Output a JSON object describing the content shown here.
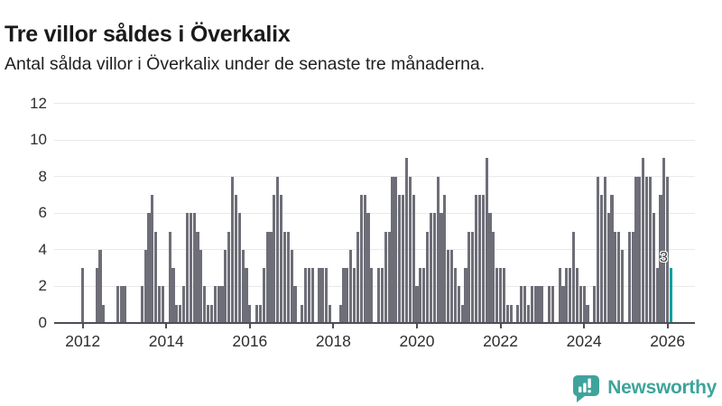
{
  "header": {
    "title": "Tre villor såldes i Överkalix",
    "subtitle": "Antal sålda villor i Överkalix under de senaste tre månaderna."
  },
  "chart_data": {
    "type": "bar",
    "title": "Tre villor såldes i Överkalix",
    "subtitle": "Antal sålda villor i Överkalix under de senaste tre månaderna.",
    "ylabel": "",
    "xlabel": "",
    "y_axis": {
      "ticks": [
        0,
        2,
        4,
        6,
        8,
        10,
        12
      ],
      "range": [
        0,
        12
      ],
      "grid": true
    },
    "x_axis": {
      "tick_labels": [
        "2012",
        "2014",
        "2016",
        "2018",
        "2020",
        "2022",
        "2024",
        "2026"
      ]
    },
    "series_start_month": "2012-01",
    "series_unit": "sold villas per rolling 3 months",
    "monthly_values_by_year": {
      "2012": [
        3,
        0,
        0,
        0,
        3,
        4,
        1,
        0,
        0,
        0,
        2,
        2
      ],
      "2013": [
        2,
        0,
        0,
        0,
        0,
        2,
        4,
        6,
        7,
        5,
        2,
        2
      ],
      "2014": [
        0,
        5,
        3,
        1,
        1,
        2,
        6,
        6,
        6,
        5,
        4,
        2
      ],
      "2015": [
        1,
        1,
        2,
        2,
        2,
        4,
        5,
        8,
        7,
        6,
        4,
        3
      ],
      "2016": [
        1,
        0,
        1,
        1,
        3,
        5,
        5,
        7,
        8,
        7,
        5,
        5
      ],
      "2017": [
        4,
        2,
        0,
        1,
        3,
        3,
        3,
        0,
        3,
        3,
        3,
        1
      ],
      "2018": [
        0,
        0,
        1,
        3,
        3,
        4,
        3,
        5,
        7,
        7,
        6,
        3
      ],
      "2019": [
        0,
        3,
        3,
        5,
        5,
        8,
        8,
        7,
        7,
        9,
        8,
        7
      ],
      "2020": [
        2,
        3,
        3,
        5,
        6,
        6,
        8,
        6,
        7,
        4,
        4,
        3
      ],
      "2021": [
        2,
        1,
        3,
        5,
        5,
        7,
        7,
        7,
        9,
        6,
        5,
        3
      ],
      "2022": [
        3,
        3,
        1,
        1,
        0,
        1,
        2,
        2,
        1,
        2,
        2,
        2
      ],
      "2023": [
        2,
        0,
        2,
        2,
        0,
        3,
        2,
        3,
        3,
        5,
        3,
        2
      ],
      "2024": [
        2,
        1,
        0,
        2,
        8,
        7,
        8,
        6,
        7,
        5,
        5,
        4
      ],
      "2025": [
        0,
        5,
        5,
        8,
        8,
        9,
        8,
        8,
        6,
        3,
        7,
        9
      ],
      "2026": [
        8,
        3
      ]
    },
    "highlight": {
      "last_value_label": "3",
      "applies_to": "last-bar"
    },
    "legend": null
  },
  "branding": {
    "logo_text": "Newsworthy"
  },
  "colors": {
    "bar": "#6e6e78",
    "highlight": "#00a0a0",
    "grid": "#e9e9ec",
    "axis": "#4e4e56",
    "tick_text": "#2e2e2e",
    "title_text": "#1a1a1a",
    "logo": "#3ea49b"
  }
}
